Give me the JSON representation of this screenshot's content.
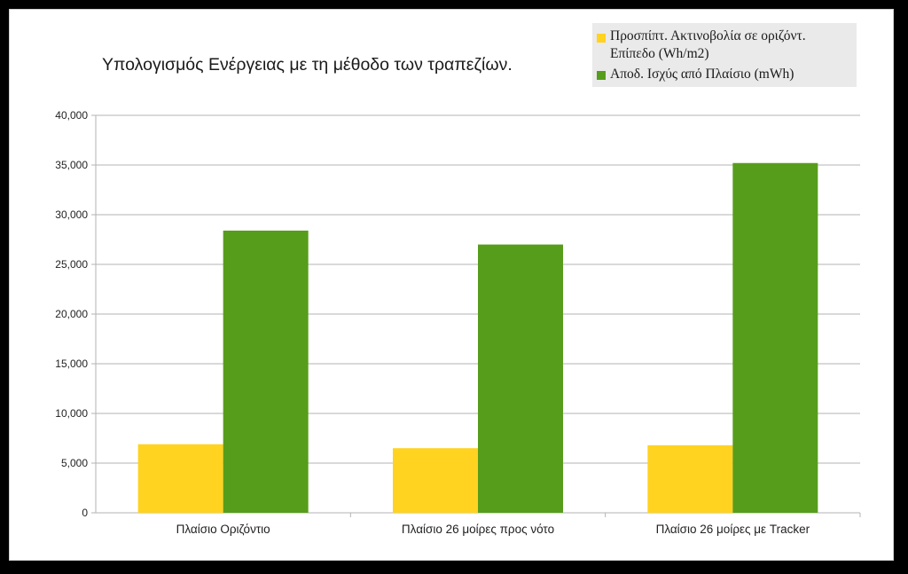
{
  "chart_data": {
    "type": "bar",
    "title": "Υπολογισμός Ενέργειας με τη μέθοδο των τραπεζίων.",
    "categories": [
      "Πλαίσιο Οριζόντιο",
      "Πλαίσιο 26 μοίρες προς νότο",
      "Πλαίσιο 26 μοίρες με Tracker"
    ],
    "series": [
      {
        "name": "Προσπίπτ. Ακτινοβολία σε οριζόντ. Επίπεδο (Wh/m2)",
        "color": "#ffd320",
        "values": [
          6900,
          6500,
          6800
        ]
      },
      {
        "name": "Αποδ. Ισχύς από Πλαίσιο (mWh)",
        "color": "#579d1c",
        "values": [
          28400,
          27000,
          35200
        ]
      }
    ],
    "ylim": [
      0,
      40000
    ],
    "yticks": [
      "0",
      "5,000",
      "10,000",
      "15,000",
      "20,000",
      "25,000",
      "30,000",
      "35,000",
      "40,000"
    ],
    "ytick_values": [
      0,
      5000,
      10000,
      15000,
      20000,
      25000,
      30000,
      35000,
      40000
    ],
    "grid": true,
    "legend_position": "top-right",
    "xlabel": "",
    "ylabel": ""
  }
}
